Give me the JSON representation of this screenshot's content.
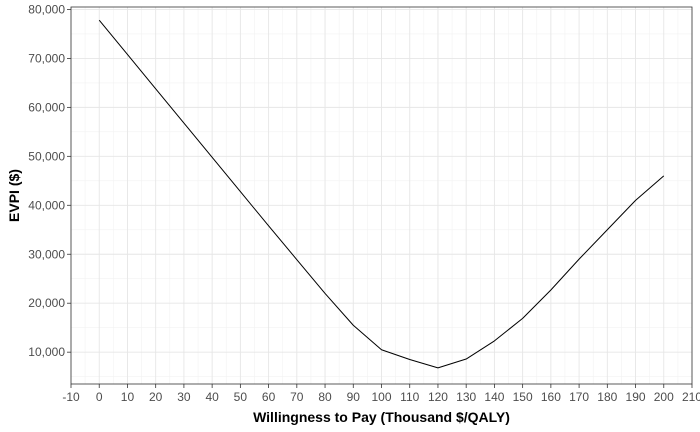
{
  "chart_data": {
    "type": "line",
    "title": "",
    "xlabel": "Willingness to Pay (Thousand $/QALY)",
    "ylabel": "EVPI ($)",
    "xlim": [
      -10,
      210
    ],
    "ylim": [
      3500,
      80500
    ],
    "x_ticks": [
      -10,
      0,
      10,
      20,
      30,
      40,
      50,
      60,
      70,
      80,
      90,
      100,
      110,
      120,
      130,
      140,
      150,
      160,
      170,
      180,
      190,
      200,
      210
    ],
    "x_tick_labels": [
      "-10",
      "0",
      "10",
      "20",
      "30",
      "40",
      "50",
      "60",
      "70",
      "80",
      "90",
      "100",
      "110",
      "120",
      "130",
      "140",
      "150",
      "160",
      "170",
      "180",
      "190",
      "200",
      "210"
    ],
    "y_ticks": [
      10000,
      20000,
      30000,
      40000,
      50000,
      60000,
      70000,
      80000
    ],
    "y_tick_labels": [
      "10,000",
      "20,000",
      "30,000",
      "40,000",
      "50,000",
      "60,000",
      "70,000",
      "80,000"
    ],
    "grid": true,
    "legend": "none",
    "series": [
      {
        "color": "#000000",
        "x": [
          0,
          10,
          20,
          30,
          40,
          50,
          60,
          70,
          80,
          90,
          100,
          110,
          120,
          130,
          140,
          150,
          160,
          170,
          180,
          190,
          200
        ],
        "y": [
          77800,
          70800,
          63800,
          56800,
          49800,
          42800,
          35800,
          28900,
          22000,
          15500,
          10500,
          8500,
          6800,
          8600,
          12300,
          16900,
          22700,
          29000,
          35000,
          41000,
          46000
        ]
      }
    ]
  }
}
